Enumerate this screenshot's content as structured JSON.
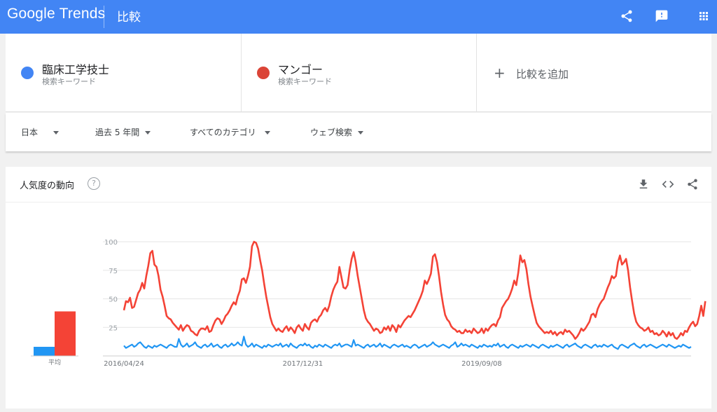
{
  "header": {
    "logo": "Google Trends",
    "title": "比較"
  },
  "compare": {
    "terms": [
      {
        "name": "臨床工学技士",
        "subtitle": "検索キーワード",
        "color": "#4285f4"
      },
      {
        "name": "マンゴー",
        "subtitle": "検索キーワード",
        "color": "#db4437"
      }
    ],
    "add_label": "比較を追加"
  },
  "filters": {
    "region": "日本",
    "period": "過去 5 年間",
    "category": "すべてのカテゴリ",
    "search_type": "ウェブ検索"
  },
  "card": {
    "title": "人気度の動向",
    "help": "?"
  },
  "colors": {
    "header_bg": "#4285f4",
    "series_blue": "#2196f3",
    "series_red": "#f44336"
  },
  "chart_data": {
    "type": "line",
    "x_tick_labels": [
      "2016/04/24",
      "2017/12/31",
      "2019/09/08"
    ],
    "x_tick_index": [
      0,
      88,
      176
    ],
    "yticks": [
      25,
      50,
      75,
      100
    ],
    "ylim": [
      0,
      100
    ],
    "grid": true,
    "average_label": "平均",
    "averages": [
      {
        "name": "臨床工学技士",
        "value": 8
      },
      {
        "name": "マンゴー",
        "value": 39
      }
    ],
    "series": [
      {
        "name": "臨床工学技士",
        "values": [
          9,
          7,
          8,
          9,
          10,
          8,
          9,
          11,
          12,
          10,
          8,
          7,
          9,
          8,
          7,
          9,
          8,
          9,
          10,
          9,
          8,
          7,
          9,
          10,
          9,
          8,
          8,
          15,
          10,
          8,
          9,
          11,
          8,
          9,
          10,
          12,
          9,
          8,
          7,
          9,
          10,
          8,
          9,
          11,
          8,
          9,
          10,
          8,
          7,
          9,
          10,
          8,
          9,
          11,
          9,
          10,
          12,
          10,
          9,
          17,
          10,
          8,
          9,
          11,
          8,
          10,
          9,
          8,
          7,
          9,
          8,
          10,
          9,
          8,
          9,
          10,
          9,
          11,
          8,
          9,
          10,
          8,
          11,
          9,
          8,
          7,
          9,
          10,
          9,
          11,
          9,
          10,
          8,
          7,
          9,
          8,
          10,
          9,
          8,
          10,
          9,
          8,
          7,
          9,
          10,
          9,
          11,
          8,
          9,
          10,
          10,
          9,
          8,
          14,
          9,
          10,
          9,
          8,
          7,
          9,
          10,
          8,
          9,
          10,
          8,
          9,
          11,
          8,
          10,
          9,
          8,
          7,
          9,
          10,
          9,
          8,
          9,
          10,
          8,
          9,
          8,
          7,
          9,
          10,
          9,
          7,
          8,
          9,
          10,
          8,
          9,
          10,
          12,
          10,
          9,
          8,
          9,
          10,
          9,
          8,
          7,
          9,
          10,
          12,
          8,
          9,
          11,
          9,
          10,
          9,
          8,
          10,
          9,
          8,
          7,
          9,
          8,
          10,
          9,
          8,
          9,
          8,
          10,
          9,
          11,
          8,
          9,
          10,
          8,
          7,
          9,
          10,
          9,
          8,
          7,
          9,
          8,
          9,
          10,
          9,
          8,
          10,
          9,
          8,
          7,
          9,
          10,
          9,
          8,
          7,
          9,
          8,
          9,
          10,
          9,
          8,
          7,
          9,
          10,
          8,
          9,
          10,
          11,
          9,
          8,
          7,
          9,
          10,
          9,
          8,
          7,
          9,
          10,
          8,
          9,
          8,
          10,
          9,
          8,
          9,
          10,
          8,
          7,
          6,
          9,
          10,
          9,
          8,
          7,
          9,
          10,
          11,
          9,
          8,
          7,
          9,
          10,
          8,
          9,
          10,
          9,
          8,
          7,
          8,
          9,
          10,
          9,
          8,
          10,
          9,
          8,
          7,
          8,
          9,
          8,
          10,
          9,
          8,
          7,
          8
        ]
      },
      {
        "name": "マンゴー",
        "values": [
          40,
          48,
          47,
          51,
          42,
          43,
          49,
          55,
          58,
          64,
          59,
          70,
          79,
          90,
          92,
          80,
          78,
          70,
          58,
          52,
          44,
          35,
          33,
          32,
          29,
          27,
          25,
          23,
          27,
          22,
          25,
          27,
          26,
          22,
          21,
          19,
          18,
          22,
          24,
          24,
          23,
          26,
          21,
          22,
          27,
          31,
          33,
          32,
          28,
          31,
          35,
          37,
          40,
          44,
          47,
          45,
          52,
          57,
          67,
          68,
          64,
          70,
          78,
          96,
          100,
          99,
          94,
          84,
          75,
          63,
          52,
          43,
          34,
          28,
          25,
          22,
          24,
          22,
          21,
          24,
          26,
          22,
          25,
          23,
          20,
          25,
          27,
          24,
          22,
          28,
          25,
          23,
          29,
          31,
          32,
          30,
          34,
          36,
          40,
          42,
          39,
          44,
          52,
          58,
          62,
          65,
          78,
          69,
          60,
          59,
          62,
          75,
          85,
          91,
          82,
          70,
          60,
          50,
          40,
          33,
          30,
          28,
          25,
          22,
          24,
          23,
          20,
          21,
          25,
          23,
          26,
          22,
          27,
          25,
          21,
          27,
          25,
          28,
          31,
          33,
          35,
          34,
          37,
          40,
          44,
          48,
          52,
          57,
          66,
          63,
          67,
          72,
          87,
          89,
          82,
          70,
          56,
          45,
          36,
          32,
          30,
          26,
          24,
          23,
          21,
          22,
          20,
          20,
          23,
          21,
          22,
          20,
          24,
          22,
          20,
          21,
          24,
          20,
          24,
          22,
          25,
          27,
          28,
          26,
          31,
          34,
          42,
          45,
          48,
          50,
          54,
          59,
          66,
          62,
          73,
          88,
          82,
          84,
          76,
          63,
          52,
          44,
          36,
          29,
          26,
          24,
          22,
          20,
          21,
          20,
          22,
          19,
          21,
          18,
          20,
          21,
          19,
          23,
          21,
          22,
          20,
          18,
          15,
          17,
          20,
          24,
          22,
          24,
          27,
          30,
          36,
          37,
          34,
          41,
          45,
          48,
          50,
          55,
          60,
          64,
          70,
          68,
          70,
          82,
          88,
          80,
          82,
          85,
          75,
          60,
          48,
          37,
          30,
          27,
          25,
          24,
          22,
          23,
          25,
          21,
          22,
          19,
          20,
          18,
          19,
          22,
          20,
          17,
          21,
          18,
          20,
          16,
          15,
          17,
          20,
          18,
          22,
          21,
          25,
          28,
          30,
          26,
          28,
          35,
          44,
          35,
          48
        ]
      }
    ]
  }
}
